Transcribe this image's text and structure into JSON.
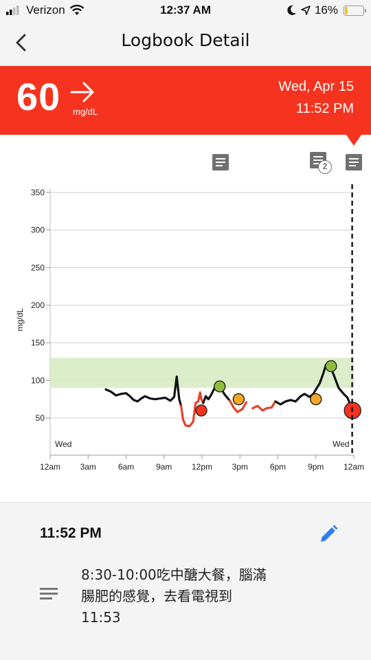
{
  "status_bar": {
    "carrier": "Verizon",
    "time": "12:37 AM",
    "battery": "16%",
    "battery_level": 0.16,
    "icons": [
      "signal-icon",
      "wifi-icon",
      "moon-icon",
      "location-icon",
      "battery-icon"
    ]
  },
  "header": {
    "title": "Logbook Detail",
    "back_icon": "chevron-left-icon"
  },
  "reading": {
    "value": "60",
    "unit": "mg/dL",
    "trend_icon": "arrow-right-icon",
    "date": "Wed, Apr 15",
    "time": "11:52 PM",
    "banner_color": "#f5331f"
  },
  "note_markers": [
    {
      "icon": "note-icon",
      "count": null
    },
    {
      "icon": "note-icon",
      "count": "2"
    },
    {
      "icon": "note-icon",
      "count": null
    }
  ],
  "chart_data": {
    "type": "line",
    "ylabel": "mg/dL",
    "y_ticks": [
      "350",
      "300",
      "250",
      "200",
      "150",
      "100",
      "50"
    ],
    "ylim": [
      20,
      360
    ],
    "x_ticks": [
      "12am",
      "3am",
      "6am",
      "9am",
      "12pm",
      "3pm",
      "6pm",
      "9pm",
      "12am"
    ],
    "xlim": [
      0,
      24
    ],
    "day_labels": [
      "Wed",
      "Wed"
    ],
    "target_range": [
      90,
      130
    ],
    "low_threshold": 70,
    "colors": {
      "normal": "#111111",
      "low": "#e8402a",
      "range_band": "#d8ebc4",
      "cursor": "#111111"
    },
    "cursor_x": 23.87,
    "series": [
      {
        "segments": [
          [
            [
              4.4,
              88
            ],
            [
              4.8,
              85
            ],
            [
              5.2,
              80
            ],
            [
              5.6,
              82
            ],
            [
              6.0,
              83
            ],
            [
              6.3,
              79
            ],
            [
              6.6,
              74
            ],
            [
              6.9,
              72
            ],
            [
              7.2,
              76
            ],
            [
              7.5,
              79
            ],
            [
              7.9,
              76
            ],
            [
              8.3,
              75
            ],
            [
              8.7,
              76
            ],
            [
              9.1,
              77
            ],
            [
              9.5,
              73
            ],
            [
              9.8,
              78
            ],
            [
              10.0,
              105
            ],
            [
              10.2,
              75
            ],
            [
              10.35,
              66
            ]
          ],
          [
            [
              10.35,
              66
            ],
            [
              10.5,
              48
            ],
            [
              10.7,
              40
            ],
            [
              11.0,
              39
            ],
            [
              11.3,
              45
            ],
            [
              11.5,
              70
            ],
            [
              11.7,
              72
            ],
            [
              11.85,
              84
            ],
            [
              11.95,
              75
            ],
            [
              12.1,
              70
            ]
          ],
          [
            [
              12.1,
              70
            ],
            [
              12.3,
              79
            ],
            [
              12.5,
              75
            ],
            [
              12.7,
              80
            ],
            [
              13.0,
              90
            ],
            [
              13.4,
              92
            ],
            [
              13.8,
              81
            ],
            [
              14.2,
              73
            ]
          ],
          [
            [
              14.2,
              73
            ],
            [
              14.5,
              64
            ],
            [
              14.8,
              58
            ],
            [
              15.2,
              62
            ],
            [
              15.5,
              71
            ]
          ],
          [
            [
              16.0,
              63
            ],
            [
              16.4,
              66
            ],
            [
              16.8,
              60
            ],
            [
              17.1,
              63
            ],
            [
              17.5,
              64
            ],
            [
              17.8,
              72
            ]
          ],
          [
            [
              17.8,
              72
            ],
            [
              18.2,
              68
            ],
            [
              18.6,
              72
            ],
            [
              19.0,
              74
            ],
            [
              19.4,
              72
            ],
            [
              19.8,
              79
            ],
            [
              20.1,
              82
            ],
            [
              20.5,
              78
            ],
            [
              20.8,
              82
            ],
            [
              21.0,
              88
            ],
            [
              21.3,
              96
            ],
            [
              21.6,
              110
            ],
            [
              21.8,
              121
            ],
            [
              22.0,
              124
            ],
            [
              22.4,
              108
            ],
            [
              22.8,
              90
            ],
            [
              23.2,
              82
            ],
            [
              23.5,
              77
            ],
            [
              23.9,
              60
            ]
          ]
        ]
      }
    ],
    "low_segment_indices": [
      1,
      3,
      4
    ],
    "markers": [
      {
        "x": 11.95,
        "y": 60,
        "color": "#f5331f",
        "kind": "reading"
      },
      {
        "x": 13.4,
        "y": 92,
        "color": "#8fbc3a",
        "kind": "reading"
      },
      {
        "x": 14.9,
        "y": 75,
        "color": "#f5a623",
        "kind": "reading"
      },
      {
        "x": 21.0,
        "y": 75,
        "color": "#f5a623",
        "kind": "reading"
      },
      {
        "x": 22.2,
        "y": 119,
        "color": "#8fbc3a",
        "kind": "reading"
      },
      {
        "x": 23.9,
        "y": 60,
        "color": "#f5331f",
        "kind": "selected"
      }
    ]
  },
  "detail": {
    "time": "11:52 PM",
    "edit_icon": "pencil-icon",
    "notes_icon": "notes-icon",
    "note_lines": [
      "8:30-10:00吃中醣大餐，腦滿",
      "腸肥的感覺，去看電視到",
      "11:53"
    ],
    "accent": "#2f80ed"
  }
}
